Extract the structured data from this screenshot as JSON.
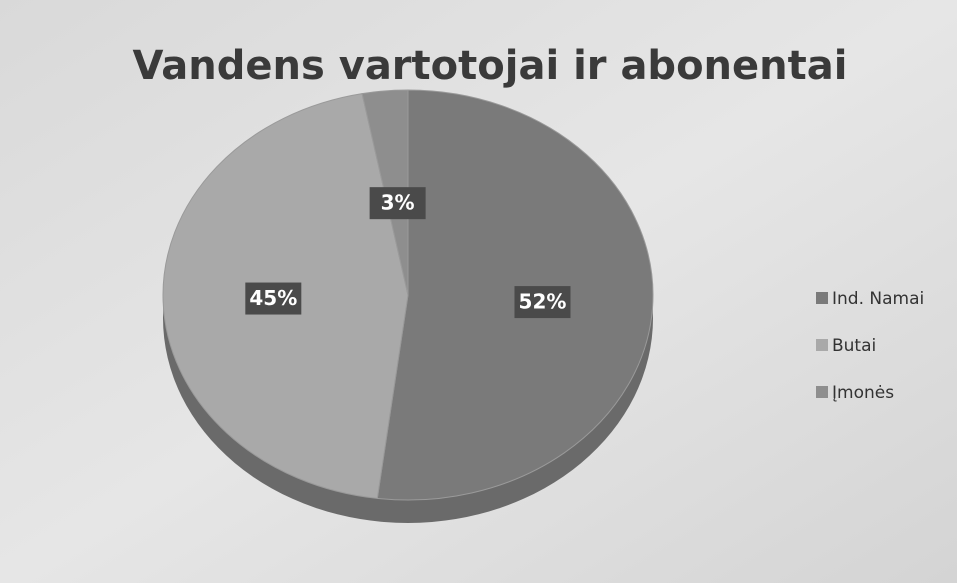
{
  "chart_data": {
    "type": "pie",
    "title": "Vandens vartotojai ir abonentai",
    "categories": [
      "Ind. Namai",
      "Butai",
      "Įmonės"
    ],
    "values": [
      52,
      45,
      3
    ],
    "value_labels": [
      "52%",
      "45%",
      "3%"
    ],
    "colors": [
      "#7a7a7a",
      "#a9a9a9",
      "#8e8e8e"
    ],
    "legend": "right"
  }
}
